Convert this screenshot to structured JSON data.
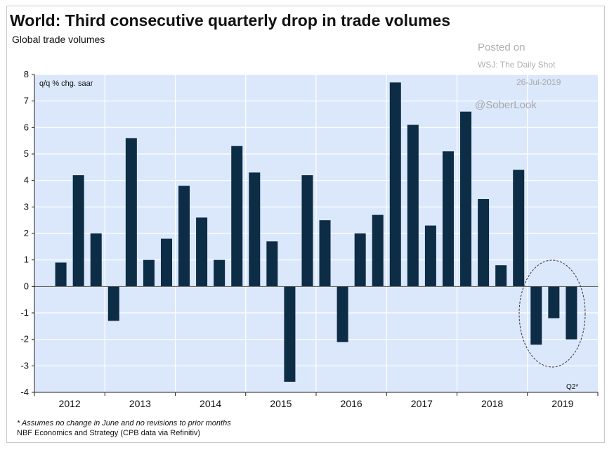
{
  "header": {
    "title": "World: Third consecutive quarterly drop in trade volumes",
    "subtitle": "Global trade volumes"
  },
  "watermark": {
    "posted": "Posted on",
    "source": "WSJ: The Daily Shot",
    "date": "26-Jul-2019",
    "handle": "@SoberLook"
  },
  "footnotes": {
    "note": "* Assumes no change in June and no revisions to prior months",
    "source": "NBF Economics and Strategy (CPB data via Refinitiv)"
  },
  "colors": {
    "bar": "#0d2c45",
    "plot_bg": "#dbe8fb",
    "grid": "#ffffff",
    "ellipse": "#333333"
  },
  "chart_data": {
    "type": "bar",
    "title": "World: Third consecutive quarterly drop in trade volumes",
    "subtitle": "Global trade volumes",
    "unit_label": "q/q % chg. saar",
    "ylim": [
      -4,
      8
    ],
    "yticks": [
      8,
      7,
      6,
      5,
      4,
      3,
      2,
      1,
      0,
      -1,
      -2,
      -3,
      -4
    ],
    "grid": true,
    "year_labels": [
      "2012",
      "2013",
      "2014",
      "2015",
      "2016",
      "2017",
      "2018",
      "2019"
    ],
    "annotation": "Q2*",
    "categories": [
      "2012 Q1",
      "2012 Q2",
      "2012 Q3",
      "2012 Q4",
      "2013 Q1",
      "2013 Q2",
      "2013 Q3",
      "2013 Q4",
      "2014 Q1",
      "2014 Q2",
      "2014 Q3",
      "2014 Q4",
      "2015 Q1",
      "2015 Q2",
      "2015 Q3",
      "2015 Q4",
      "2016 Q1",
      "2016 Q2",
      "2016 Q3",
      "2016 Q4",
      "2017 Q1",
      "2017 Q2",
      "2017 Q3",
      "2017 Q4",
      "2018 Q1",
      "2018 Q2",
      "2018 Q3",
      "2018 Q4",
      "2019 Q1",
      "2019 Q2",
      "2019 Q3",
      "2019 Q4"
    ],
    "values": [
      null,
      0.9,
      4.2,
      2.0,
      -1.3,
      5.6,
      1.0,
      1.8,
      3.8,
      2.6,
      1.0,
      5.3,
      4.3,
      1.7,
      -3.6,
      4.2,
      2.5,
      -2.1,
      2.0,
      2.7,
      7.7,
      6.1,
      2.3,
      5.1,
      6.6,
      3.3,
      0.8,
      4.4,
      -2.2,
      -1.2,
      -2.0,
      null
    ]
  }
}
